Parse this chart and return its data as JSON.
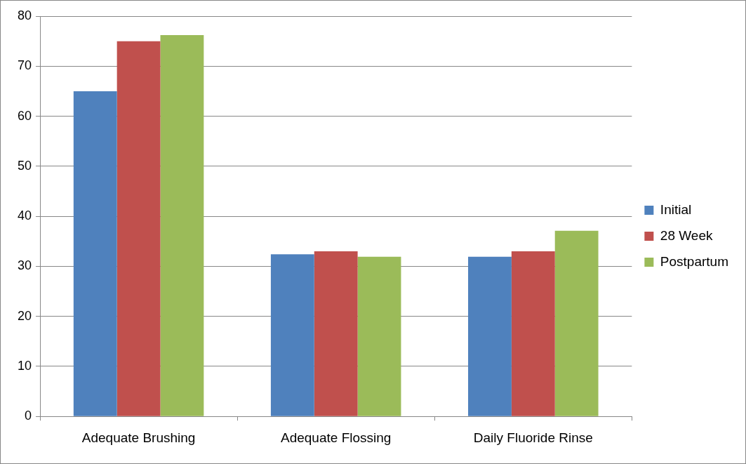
{
  "chart_data": {
    "type": "bar",
    "categories": [
      "Adequate Brushing",
      "Adequate Flossing",
      "Daily Fluoride Rinse"
    ],
    "series": [
      {
        "name": "Initial",
        "color": "#4f81bd",
        "values": [
          65,
          32.4,
          31.9
        ]
      },
      {
        "name": "28 Week",
        "color": "#c0504d",
        "values": [
          75,
          33,
          33
        ]
      },
      {
        "name": "Postpartum",
        "color": "#9bbb59",
        "values": [
          76.2,
          31.9,
          37.1
        ]
      }
    ],
    "ylim": [
      0,
      80
    ],
    "yticks": [
      0,
      10,
      20,
      30,
      40,
      50,
      60,
      70,
      80
    ],
    "grid": "y",
    "legend": "right"
  }
}
